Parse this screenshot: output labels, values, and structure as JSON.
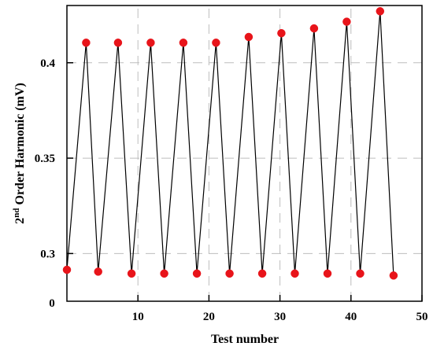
{
  "chart_data": {
    "type": "line",
    "title": "",
    "xlabel": "Test number",
    "ylabel_main": "2",
    "ylabel_sup": "nd",
    "ylabel_rest": " Order Harmonic (mV)",
    "xlim": [
      0,
      50
    ],
    "ylim": [
      0.275,
      0.43
    ],
    "x_ticks": [
      10,
      20,
      30,
      40,
      50
    ],
    "x_tick_labels": [
      "10",
      "20",
      "30",
      "40",
      "50"
    ],
    "y_ticks": [
      0.3,
      0.35,
      0.4
    ],
    "y_tick_labels": [
      "0.3",
      "0.35",
      "0.4"
    ],
    "origin_label": "0",
    "grid": true,
    "line_color": "#000000",
    "marker_color": "#e8141a",
    "series": [
      {
        "x": [
          0,
          2.7,
          4.4,
          7.2,
          9.1,
          11.8,
          13.7,
          16.4,
          18.3,
          21.0,
          22.9,
          25.6,
          27.5,
          30.2,
          32.1,
          34.8,
          36.7,
          39.4,
          41.3,
          44.1,
          46.0
        ],
        "y": [
          0.2915,
          0.4105,
          0.2905,
          0.4105,
          0.2895,
          0.4105,
          0.2895,
          0.4105,
          0.2895,
          0.4105,
          0.2895,
          0.4135,
          0.2895,
          0.4155,
          0.2895,
          0.418,
          0.2895,
          0.4215,
          0.2895,
          0.427,
          0.2885
        ]
      }
    ]
  }
}
